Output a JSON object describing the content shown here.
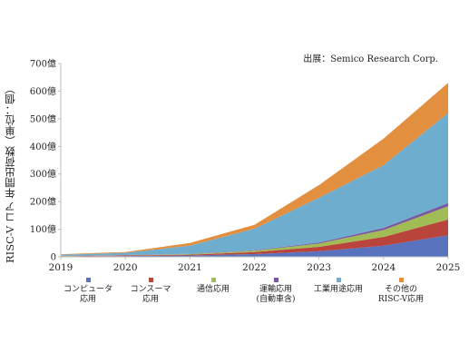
{
  "source_note": "出展：Semico Research Corp.",
  "chart_data": {
    "type": "area",
    "stacked": true,
    "title": "",
    "xlabel": "",
    "ylabel": "RISC-V コア 年間出荷数（単位：個）",
    "categories": [
      "2019",
      "2020",
      "2021",
      "2022",
      "2023",
      "2024",
      "2025"
    ],
    "ylim": [
      0,
      700
    ],
    "yticks": [
      0,
      100,
      200,
      300,
      400,
      500,
      600,
      700
    ],
    "ytick_labels": [
      "0",
      "100億",
      "200億",
      "300億",
      "400億",
      "500億",
      "600億",
      "700億"
    ],
    "grid": false,
    "legend_position": "bottom",
    "series": [
      {
        "name": "コンピュータ\n応用",
        "color": "#5872be",
        "values": [
          1,
          3,
          5,
          10,
          20,
          40,
          78
        ]
      },
      {
        "name": "コンスーマ\n応用",
        "color": "#b9443c",
        "values": [
          1,
          2,
          3,
          7,
          16,
          32,
          57
        ]
      },
      {
        "name": "通信応用",
        "color": "#a1bc55",
        "values": [
          1,
          1,
          2,
          5,
          12,
          25,
          48
        ]
      },
      {
        "name": "運輸応用\n(自動車含)",
        "color": "#7a59a1",
        "values": [
          0.5,
          0.5,
          1,
          2,
          4,
          8,
          12
        ]
      },
      {
        "name": "工業用途応用",
        "color": "#6fadcf",
        "values": [
          4,
          8,
          29,
          78,
          162,
          227,
          326
        ]
      },
      {
        "name": "その他の\nRISC-V応用",
        "color": "#e2903f",
        "values": [
          2,
          3,
          10,
          14,
          46,
          96,
          109
        ]
      }
    ]
  }
}
